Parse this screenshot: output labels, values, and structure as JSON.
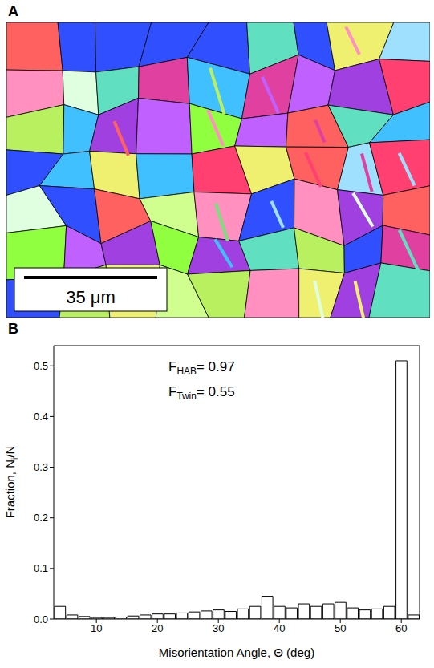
{
  "panel_a": {
    "label": "A",
    "scale_bar": "35 μm"
  },
  "chart_data": {
    "type": "histogram",
    "panel_label": "B",
    "x_label": "Misorientation Angle, Θ (deg)",
    "y_label": {
      "text": "Fraction, N",
      "subscript": "i",
      "after": "/N"
    },
    "annotations": [
      {
        "text": "F",
        "subscript": "HAB",
        "after": "= 0.97"
      },
      {
        "text": "F",
        "subscript": "Twin",
        "after": "= 0.55"
      }
    ],
    "bins": [
      3,
      5,
      7,
      9,
      11,
      13,
      15,
      17,
      19,
      21,
      23,
      25,
      27,
      29,
      31,
      33,
      35,
      37,
      39,
      41,
      43,
      45,
      47,
      49,
      51,
      53,
      55,
      57,
      59,
      61,
      63
    ],
    "values": [
      0.025,
      0.008,
      0.005,
      0.003,
      0.003,
      0.004,
      0.006,
      0.008,
      0.01,
      0.01,
      0.012,
      0.014,
      0.016,
      0.018,
      0.015,
      0.02,
      0.025,
      0.045,
      0.025,
      0.022,
      0.03,
      0.025,
      0.03,
      0.033,
      0.022,
      0.018,
      0.02,
      0.025,
      0.51,
      0.008
    ],
    "color": "#ffffff",
    "xlim": [
      3,
      63
    ],
    "xticks": [
      10,
      20,
      30,
      40,
      50,
      60
    ],
    "ylim": [
      0,
      0.54
    ],
    "yticks": [
      {
        "value": 0,
        "label": "0.0"
      },
      0.1,
      0.2,
      0.3,
      0.4,
      0.5
    ],
    "grid": false
  }
}
